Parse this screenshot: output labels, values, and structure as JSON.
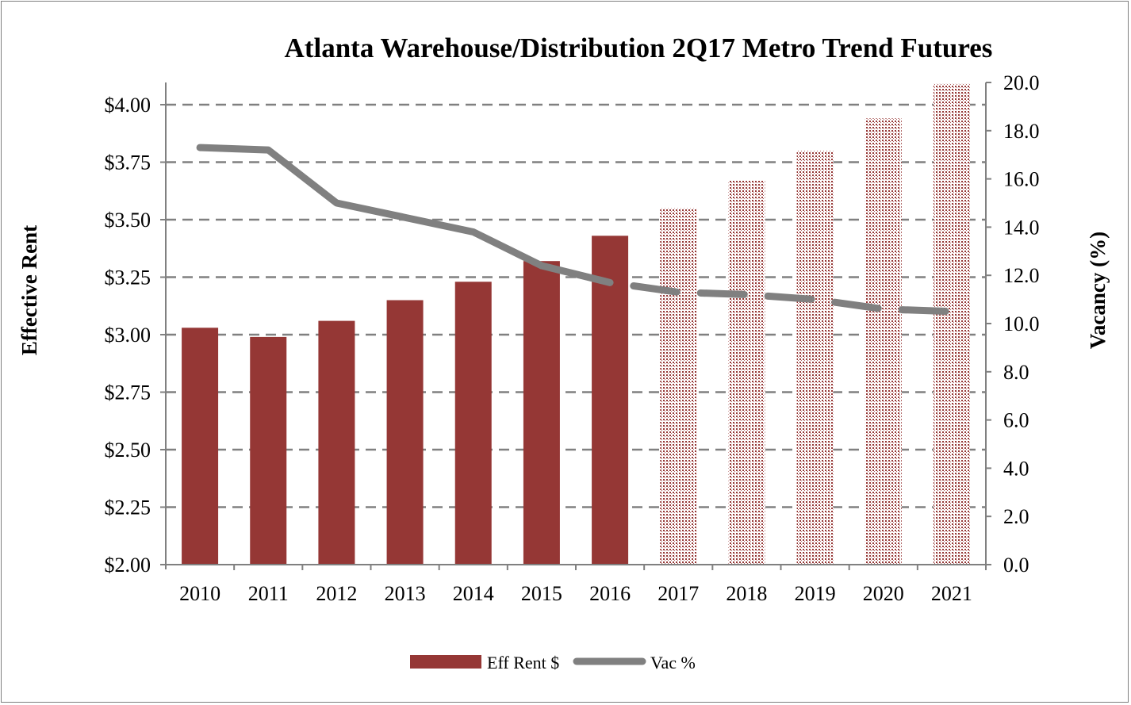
{
  "chart_data": {
    "type": "bar",
    "title": "Atlanta Warehouse/Distribution 2Q17 Metro Trend Futures",
    "ylabel": "Effective Rent",
    "y2label": "Vacancy (%)",
    "xlabel": "",
    "categories": [
      "2010",
      "2011",
      "2012",
      "2013",
      "2014",
      "2015",
      "2016",
      "2017",
      "2018",
      "2019",
      "2020",
      "2021"
    ],
    "forecast_from": "2017",
    "ylim": [
      2.0,
      4.0
    ],
    "y2lim": [
      0,
      20
    ],
    "yticks": [
      "$2.00",
      "$2.25",
      "$2.50",
      "$2.75",
      "$3.00",
      "$3.25",
      "$3.50",
      "$3.75",
      "$4.00"
    ],
    "y2ticks": [
      "0.0",
      "2.0",
      "4.0",
      "6.0",
      "8.0",
      "10.0",
      "12.0",
      "14.0",
      "16.0",
      "18.0",
      "20.0"
    ],
    "grid": true,
    "legend_position": "bottom",
    "series": [
      {
        "name": "Eff Rent $",
        "type": "bar",
        "axis": "left",
        "color": "#953735",
        "values": [
          3.03,
          2.99,
          3.06,
          3.15,
          3.23,
          3.32,
          3.43,
          3.55,
          3.67,
          3.8,
          3.94,
          4.09
        ]
      },
      {
        "name": "Vac %",
        "type": "line",
        "axis": "right",
        "color": "#808080",
        "values": [
          17.3,
          17.2,
          15.0,
          14.4,
          13.8,
          12.4,
          11.7,
          11.3,
          11.2,
          11.0,
          10.6,
          10.5
        ]
      }
    ]
  }
}
